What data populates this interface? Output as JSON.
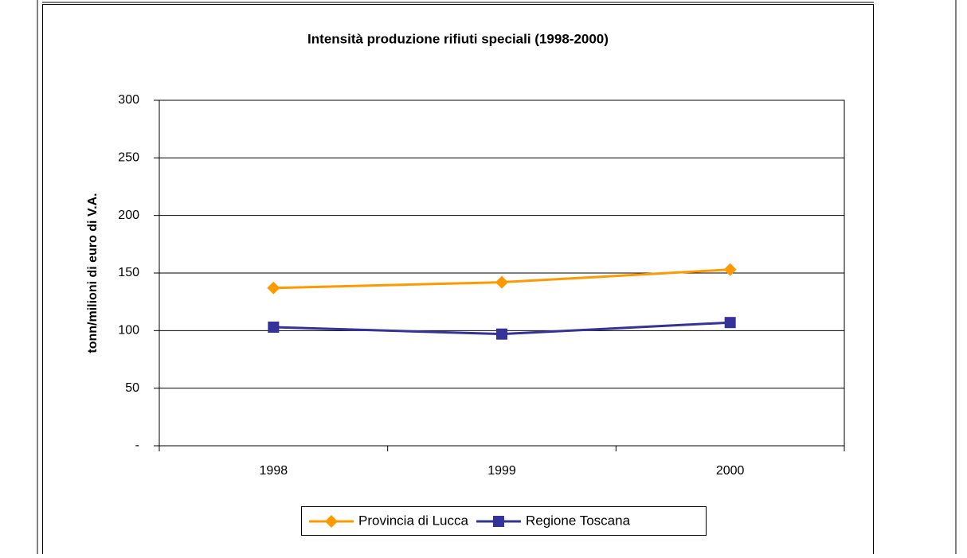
{
  "chart_data": {
    "type": "line",
    "title": "Intensità produzione rifiuti speciali (1998-2000)",
    "y_label": "tonn/milioni di euro di V.A.",
    "categories": [
      "1998",
      "1999",
      "2000"
    ],
    "series": [
      {
        "name": "Provincia di Lucca",
        "color": "#ff9900",
        "marker": "diamond",
        "values": [
          137,
          142,
          153
        ]
      },
      {
        "name": "Regione Toscana",
        "color": "#333399",
        "marker": "square",
        "values": [
          103,
          97,
          107
        ]
      }
    ],
    "ylim": [
      0,
      300
    ],
    "yticks": [
      {
        "value": 0,
        "label": "-"
      },
      50,
      100,
      150,
      200,
      250,
      300
    ],
    "grid": true,
    "legend": "bottom"
  }
}
